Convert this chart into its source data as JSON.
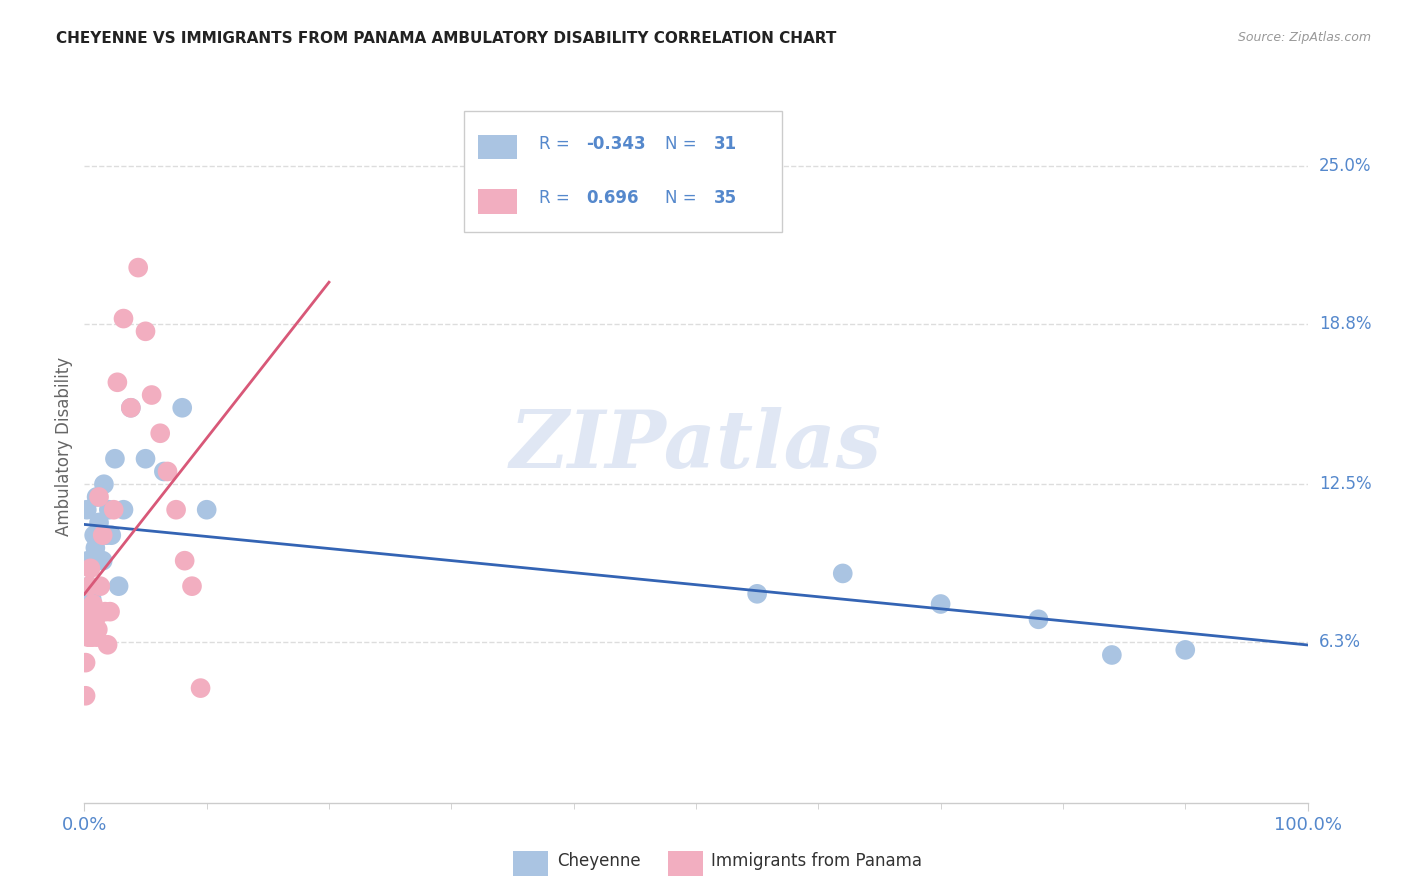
{
  "title": "CHEYENNE VS IMMIGRANTS FROM PANAMA AMBULATORY DISABILITY CORRELATION CHART",
  "source": "Source: ZipAtlas.com",
  "ylabel": "Ambulatory Disability",
  "right_yticks": [
    "25.0%",
    "18.8%",
    "12.5%",
    "6.3%"
  ],
  "right_ytick_vals": [
    0.25,
    0.188,
    0.125,
    0.063
  ],
  "legend_blue_r": "-0.343",
  "legend_blue_n": "31",
  "legend_pink_r": "0.696",
  "legend_pink_n": "35",
  "watermark": "ZIPatlas",
  "blue_color": "#aac4e2",
  "pink_color": "#f2aec0",
  "blue_line_color": "#3464b4",
  "pink_line_color": "#d85878",
  "cheyenne_x": [
    0.002,
    0.003,
    0.004,
    0.005,
    0.006,
    0.007,
    0.008,
    0.009,
    0.01,
    0.011,
    0.012,
    0.013,
    0.015,
    0.016,
    0.018,
    0.02,
    0.022,
    0.025,
    0.028,
    0.032,
    0.038,
    0.05,
    0.065,
    0.08,
    0.1,
    0.55,
    0.62,
    0.7,
    0.78,
    0.84,
    0.9
  ],
  "cheyenne_y": [
    0.115,
    0.095,
    0.085,
    0.075,
    0.08,
    0.075,
    0.105,
    0.1,
    0.12,
    0.075,
    0.11,
    0.105,
    0.095,
    0.125,
    0.105,
    0.115,
    0.105,
    0.135,
    0.085,
    0.115,
    0.155,
    0.135,
    0.13,
    0.155,
    0.115,
    0.082,
    0.09,
    0.078,
    0.072,
    0.058,
    0.06
  ],
  "panama_x": [
    0.001,
    0.001,
    0.002,
    0.002,
    0.003,
    0.003,
    0.004,
    0.004,
    0.005,
    0.005,
    0.006,
    0.007,
    0.008,
    0.009,
    0.01,
    0.011,
    0.012,
    0.013,
    0.015,
    0.017,
    0.019,
    0.021,
    0.024,
    0.027,
    0.032,
    0.038,
    0.044,
    0.05,
    0.055,
    0.062,
    0.068,
    0.075,
    0.082,
    0.088,
    0.095
  ],
  "panama_y": [
    0.042,
    0.055,
    0.068,
    0.075,
    0.072,
    0.065,
    0.075,
    0.085,
    0.092,
    0.065,
    0.065,
    0.078,
    0.068,
    0.072,
    0.065,
    0.068,
    0.12,
    0.085,
    0.105,
    0.075,
    0.062,
    0.075,
    0.115,
    0.165,
    0.19,
    0.155,
    0.21,
    0.185,
    0.16,
    0.145,
    0.13,
    0.115,
    0.095,
    0.085,
    0.045
  ],
  "xlim": [
    0.0,
    1.0
  ],
  "ylim": [
    0.0,
    0.28
  ],
  "background_color": "#ffffff",
  "grid_color": "#dddddd"
}
